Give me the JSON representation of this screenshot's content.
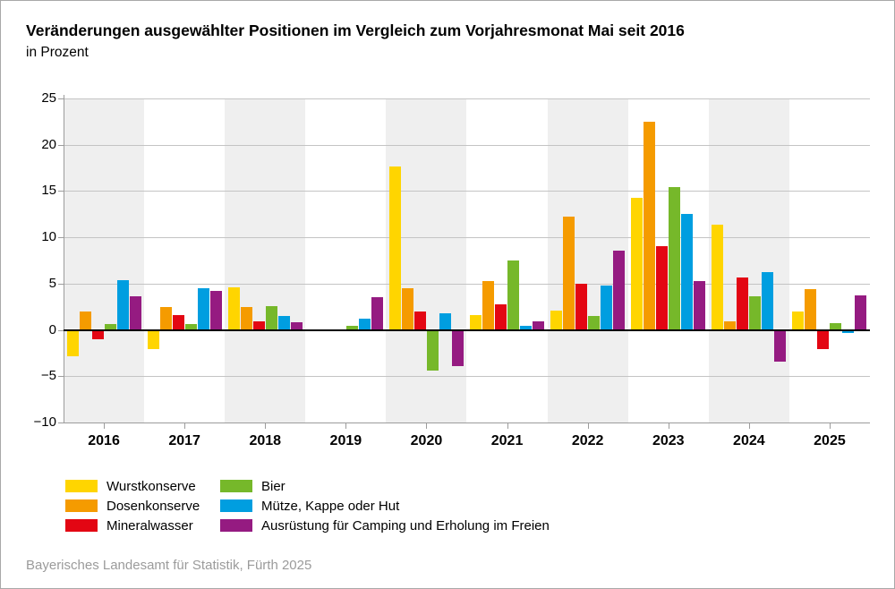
{
  "header": {
    "title": "Veränderungen ausgewählter Positionen im Vergleich zum Vorjahresmonat Mai seit 2016",
    "subtitle": "in Prozent"
  },
  "footer": {
    "source": "Bayerisches Landesamt für Statistik, Fürth 2025"
  },
  "style": {
    "stripe_color": "#efefef",
    "gridline_color": "#c4c4c4",
    "axis_color": "#9c9c9c",
    "zero_line_color": "#000000",
    "background_color": "#ffffff"
  },
  "chart_data": {
    "type": "bar",
    "title": "Veränderungen ausgewählter Positionen im Vergleich zum Vorjahresmonat Mai seit 2016",
    "subtitle": "in Prozent",
    "xlabel": "",
    "ylabel": "in Prozent",
    "ylim": [
      -10,
      25
    ],
    "grid": true,
    "legend_position": "bottom",
    "striped_category_indexes": [
      0,
      2,
      4,
      6,
      8
    ],
    "categories": [
      "2016",
      "2017",
      "2018",
      "2019",
      "2020",
      "2021",
      "2022",
      "2023",
      "2024",
      "2025"
    ],
    "yticks": [
      25,
      20,
      15,
      10,
      5,
      0,
      -5,
      -10
    ],
    "yticklabels": [
      "25",
      "20",
      "15",
      "10",
      "5",
      "0",
      "−5",
      "−10"
    ],
    "series": [
      {
        "name": "Wurstkonserve",
        "color": "#ffd500",
        "values": [
          -2.8,
          -2.1,
          4.6,
          0.0,
          17.7,
          1.6,
          2.1,
          14.3,
          11.4,
          2.0
        ]
      },
      {
        "name": "Dosenkonserve",
        "color": "#f59b00",
        "values": [
          2.0,
          2.5,
          2.5,
          -0.1,
          4.5,
          5.3,
          12.2,
          22.5,
          0.9,
          4.4
        ]
      },
      {
        "name": "Mineralwasser",
        "color": "#e30613",
        "values": [
          -1.0,
          1.6,
          0.9,
          0.0,
          2.0,
          2.8,
          5.0,
          9.0,
          5.7,
          -2.1
        ]
      },
      {
        "name": "Bier",
        "color": "#76b82a",
        "values": [
          0.6,
          0.6,
          2.6,
          0.4,
          -4.4,
          7.5,
          1.5,
          15.4,
          3.6,
          0.7
        ]
      },
      {
        "name": "Mütze, Kappe oder Hut",
        "color": "#009ee0",
        "values": [
          5.4,
          4.5,
          1.5,
          1.2,
          1.8,
          0.4,
          4.8,
          12.5,
          6.2,
          -0.3
        ]
      },
      {
        "name": "Ausrüstung für Camping und Erholung im Freien",
        "color": "#951b81",
        "values": [
          3.6,
          4.2,
          0.8,
          3.5,
          -3.9,
          0.9,
          8.6,
          5.3,
          -3.4,
          3.7
        ]
      }
    ]
  }
}
